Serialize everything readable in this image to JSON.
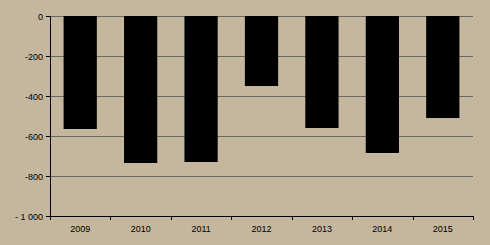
{
  "chart_data": {
    "type": "bar",
    "categories": [
      "2009",
      "2010",
      "2011",
      "2012",
      "2013",
      "2014",
      "2015"
    ],
    "values": [
      -565,
      -735,
      -730,
      -350,
      -560,
      -685,
      -510
    ],
    "color": "#000000",
    "ylim": [
      -1000,
      0
    ],
    "yticks": [
      0,
      -200,
      -400,
      -600,
      -800,
      {
        "value": -1000,
        "label": "- 1 000"
      }
    ],
    "grid": true
  }
}
